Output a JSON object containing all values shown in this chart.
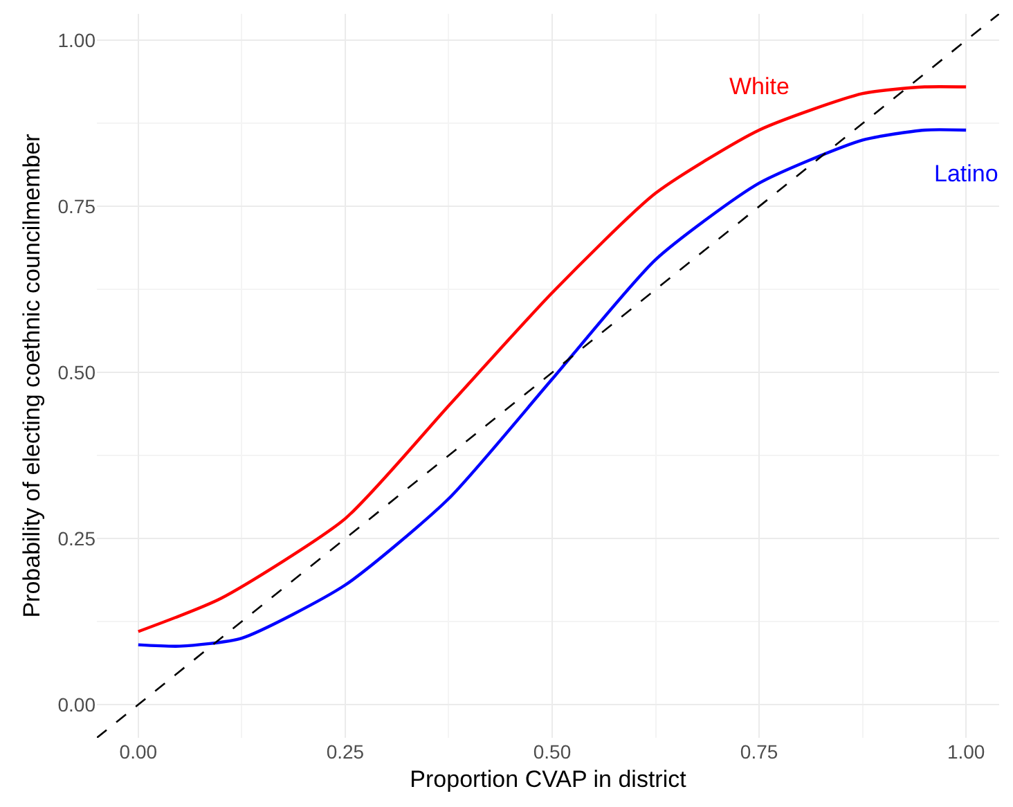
{
  "chart_data": {
    "type": "line",
    "xlabel": "Proportion CVAP in district",
    "ylabel": "Probability of electing coethnic councilmember",
    "xlim": [
      -0.05,
      1.04
    ],
    "ylim": [
      -0.05,
      1.04
    ],
    "xticks": [
      {
        "value": 0,
        "label": "0.00"
      },
      0.25,
      {
        "value": 0.5,
        "label": "0.50"
      },
      0.75,
      {
        "value": 1,
        "label": "1.00"
      }
    ],
    "yticks": [
      {
        "value": 0,
        "label": "0.00"
      },
      0.25,
      {
        "value": 0.5,
        "label": "0.50"
      },
      0.75,
      {
        "value": 1,
        "label": "1.00"
      }
    ],
    "grid": true,
    "legend": false,
    "series": [
      {
        "name": "White",
        "color": "#ff0000",
        "x": [
          0,
          0.1,
          0.25,
          0.375,
          0.5,
          0.625,
          0.75,
          0.875,
          0.95,
          1.0
        ],
        "values": [
          0.11,
          0.16,
          0.28,
          0.45,
          0.62,
          0.77,
          0.865,
          0.92,
          0.93,
          0.93
        ]
      },
      {
        "name": "Latino",
        "color": "#0000ff",
        "x": [
          0,
          0.05,
          0.125,
          0.25,
          0.375,
          0.5,
          0.625,
          0.75,
          0.875,
          0.95,
          1.0
        ],
        "values": [
          0.09,
          0.088,
          0.1,
          0.18,
          0.31,
          0.49,
          0.67,
          0.785,
          0.85,
          0.865,
          0.865
        ]
      },
      {
        "color": "#000000",
        "line_style": "dashed",
        "x": [
          -0.05,
          1.04
        ],
        "values": [
          -0.05,
          1.04
        ]
      }
    ]
  }
}
